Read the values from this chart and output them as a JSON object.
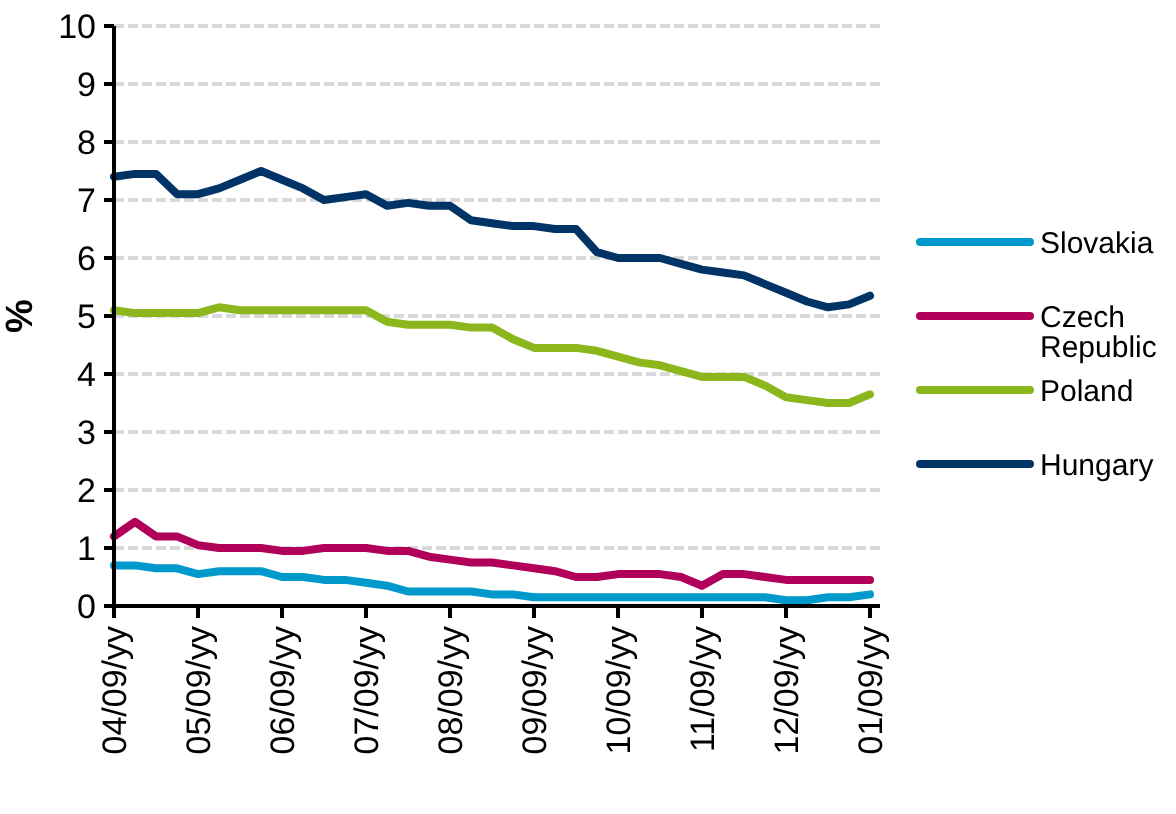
{
  "chart_data": {
    "type": "line",
    "ylabel": "%",
    "categories": [
      "04/09/yy",
      null,
      null,
      null,
      "05/09/yy",
      null,
      null,
      null,
      "06/09/yy",
      null,
      null,
      null,
      "07/09/yy",
      null,
      null,
      null,
      "08/09/yy",
      null,
      null,
      null,
      "09/09/yy",
      null,
      null,
      null,
      "10/09/yy",
      null,
      null,
      null,
      "11/09/yy",
      null,
      null,
      null,
      "12/09/yy",
      null,
      null,
      null,
      "01/09/yy"
    ],
    "ylim": [
      0,
      10
    ],
    "yticks": [
      0,
      1,
      2,
      3,
      4,
      5,
      6,
      7,
      8,
      9,
      10
    ],
    "grid": "y",
    "legend": "right",
    "marker": "none",
    "line_style": "solid",
    "series": [
      {
        "name": "Slovakia",
        "color": "#0099cc",
        "values": [
          0.7,
          0.7,
          0.65,
          0.65,
          0.55,
          0.6,
          0.6,
          0.6,
          0.5,
          0.5,
          0.45,
          0.45,
          0.4,
          0.35,
          0.25,
          0.25,
          0.25,
          0.25,
          0.2,
          0.2,
          0.15,
          0.15,
          0.15,
          0.15,
          0.15,
          0.15,
          0.15,
          0.15,
          0.15,
          0.15,
          0.15,
          0.15,
          0.1,
          0.1,
          0.15,
          0.15,
          0.2
        ]
      },
      {
        "name": "Czech Republic",
        "color": "#b0005a",
        "values": [
          1.2,
          1.45,
          1.2,
          1.2,
          1.05,
          1.0,
          1.0,
          1.0,
          0.95,
          0.95,
          1.0,
          1.0,
          1.0,
          0.95,
          0.95,
          0.85,
          0.8,
          0.75,
          0.75,
          0.7,
          0.65,
          0.6,
          0.5,
          0.5,
          0.55,
          0.55,
          0.55,
          0.5,
          0.35,
          0.55,
          0.55,
          0.5,
          0.45,
          0.45,
          0.45,
          0.45,
          0.45
        ]
      },
      {
        "name": "Poland",
        "color": "#8cb71c",
        "values": [
          5.1,
          5.05,
          5.05,
          5.05,
          5.05,
          5.15,
          5.1,
          5.1,
          5.1,
          5.1,
          5.1,
          5.1,
          5.1,
          4.9,
          4.85,
          4.85,
          4.85,
          4.8,
          4.8,
          4.6,
          4.45,
          4.45,
          4.45,
          4.4,
          4.3,
          4.2,
          4.15,
          4.05,
          3.95,
          3.95,
          3.95,
          3.8,
          3.6,
          3.55,
          3.5,
          3.5,
          3.65
        ]
      },
      {
        "name": "Hungary",
        "color": "#003366",
        "values": [
          7.4,
          7.45,
          7.45,
          7.1,
          7.1,
          7.2,
          7.35,
          7.5,
          7.35,
          7.2,
          7.0,
          7.05,
          7.1,
          6.9,
          6.95,
          6.9,
          6.9,
          6.65,
          6.6,
          6.55,
          6.55,
          6.5,
          6.5,
          6.1,
          6.0,
          6.0,
          6.0,
          5.9,
          5.8,
          5.75,
          5.7,
          5.55,
          5.4,
          5.25,
          5.15,
          5.2,
          5.35
        ]
      }
    ]
  }
}
